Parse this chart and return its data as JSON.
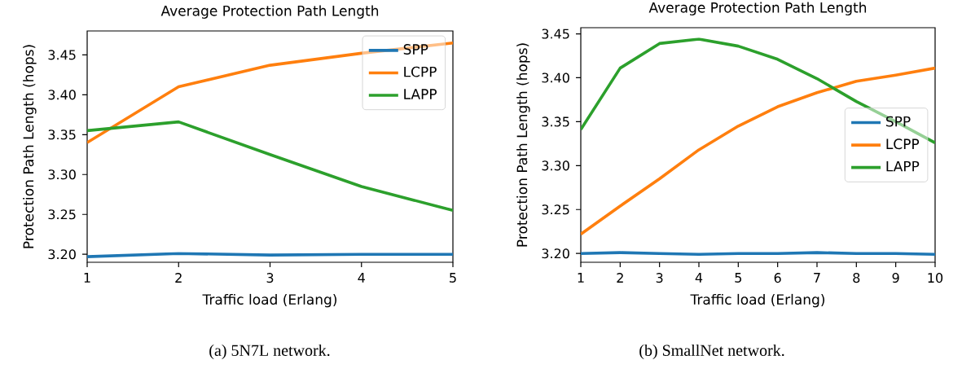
{
  "chart_data": [
    {
      "type": "line",
      "title": "Average Protection Path Length",
      "xlabel": "Traffic load (Erlang)",
      "ylabel": "Protection Path Length (hops)",
      "x": [
        1,
        2,
        3,
        4,
        5
      ],
      "xlim": [
        1,
        5
      ],
      "xticks": [
        1,
        2,
        3,
        4,
        5
      ],
      "ylim": [
        3.19,
        3.48
      ],
      "yticks": [
        {
          "value": 3.2,
          "label": "3.20"
        },
        {
          "value": 3.25,
          "label": "3.25"
        },
        {
          "value": 3.3,
          "label": "3.30"
        },
        {
          "value": 3.35,
          "label": "3.35"
        },
        {
          "value": 3.4,
          "label": "3.40"
        },
        {
          "value": 3.45,
          "label": "3.45"
        }
      ],
      "legend": "top right",
      "annotations": [
        "(a) 5N7L network."
      ],
      "series": [
        {
          "name": "SPP",
          "color": "#1f77b4",
          "values": [
            3.197,
            3.201,
            3.199,
            3.2,
            3.2
          ]
        },
        {
          "name": "LCPP",
          "color": "#ff7f0e",
          "values": [
            3.34,
            3.41,
            3.437,
            3.452,
            3.465
          ]
        },
        {
          "name": "LAPP",
          "color": "#2ca02c",
          "values": [
            3.355,
            3.366,
            3.325,
            3.285,
            3.255
          ]
        }
      ]
    },
    {
      "type": "line",
      "title": "Average Protection Path Length",
      "xlabel": "Traffic load (Erlang)",
      "ylabel": "Protection Path Length (hops)",
      "x": [
        1,
        2,
        3,
        4,
        5,
        6,
        7,
        8,
        9,
        10
      ],
      "xlim": [
        1,
        10
      ],
      "xticks": [
        1,
        2,
        3,
        4,
        5,
        6,
        7,
        8,
        9,
        10
      ],
      "ylim": [
        3.19,
        3.457
      ],
      "yticks": [
        {
          "value": 3.2,
          "label": "3.20"
        },
        {
          "value": 3.25,
          "label": "3.25"
        },
        {
          "value": 3.3,
          "label": "3.30"
        },
        {
          "value": 3.35,
          "label": "3.35"
        },
        {
          "value": 3.4,
          "label": "3.40"
        },
        {
          "value": 3.45,
          "label": "3.45"
        }
      ],
      "legend": "right",
      "annotations": [
        "(b) SmallNet network."
      ],
      "series": [
        {
          "name": "SPP",
          "color": "#1f77b4",
          "values": [
            3.2,
            3.201,
            3.2,
            3.199,
            3.2,
            3.2,
            3.201,
            3.2,
            3.2,
            3.199
          ]
        },
        {
          "name": "LCPP",
          "color": "#ff7f0e",
          "values": [
            3.222,
            3.254,
            3.285,
            3.318,
            3.345,
            3.367,
            3.383,
            3.396,
            3.403,
            3.411
          ]
        },
        {
          "name": "LAPP",
          "color": "#2ca02c",
          "values": [
            3.341,
            3.411,
            3.439,
            3.444,
            3.436,
            3.421,
            3.399,
            3.373,
            3.35,
            3.326
          ]
        }
      ]
    }
  ]
}
